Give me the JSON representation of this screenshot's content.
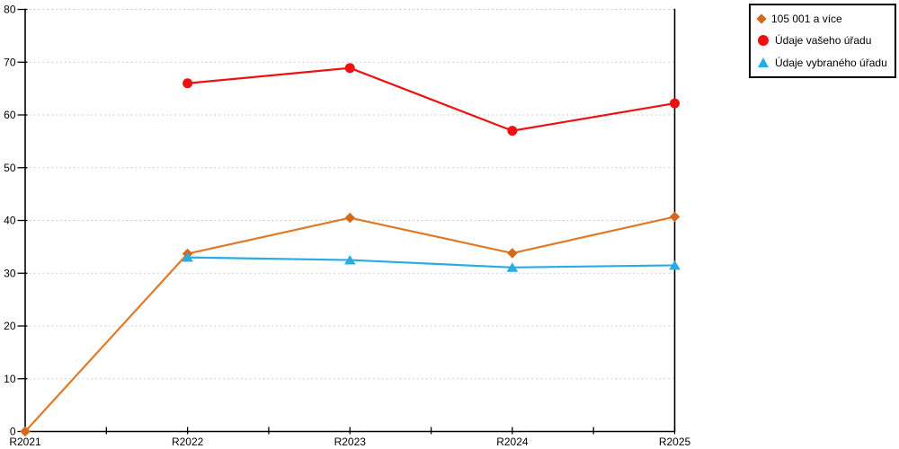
{
  "chart_data": {
    "type": "line",
    "title": "",
    "xlabel": "",
    "ylabel": "",
    "categories": [
      "R2021",
      "R2022",
      "R2023",
      "R2024",
      "R2025"
    ],
    "series": [
      {
        "id": "105-001-a-vice",
        "name": "105 001 a více",
        "marker": "diamond",
        "color": "#D2691E",
        "line_color": "#DF7A28",
        "values": [
          0,
          33.7,
          40.5,
          33.8,
          40.7
        ]
      },
      {
        "id": "udaje-vaseho-uradu",
        "name": "Údaje vašeho úřadu",
        "marker": "circle",
        "color": "#EE1111",
        "line_color": "#EE1111",
        "values": [
          null,
          66,
          68.9,
          57,
          62.2
        ]
      },
      {
        "id": "udaje-vybraneho-uradu",
        "name": "Údaje vybraného úřadu",
        "marker": "triangle",
        "color": "#29ACE3",
        "line_color": "#29ACE3",
        "values": [
          null,
          33,
          32.5,
          31.1,
          31.5
        ]
      }
    ],
    "ylim": [
      0,
      80
    ],
    "y_tick_step": 10,
    "y_tick_labels": [
      "0",
      "10",
      "20",
      "30",
      "40",
      "50",
      "60",
      "70",
      "80"
    ],
    "grid": "horizontal-dotted",
    "legend_position": "top-right-outside-plot",
    "x_minor_ticks": "midpoints"
  },
  "colors": {
    "grid": "#BFBFBF",
    "axis": "#000000",
    "background": "#FFFFFF",
    "text": "#000000"
  }
}
